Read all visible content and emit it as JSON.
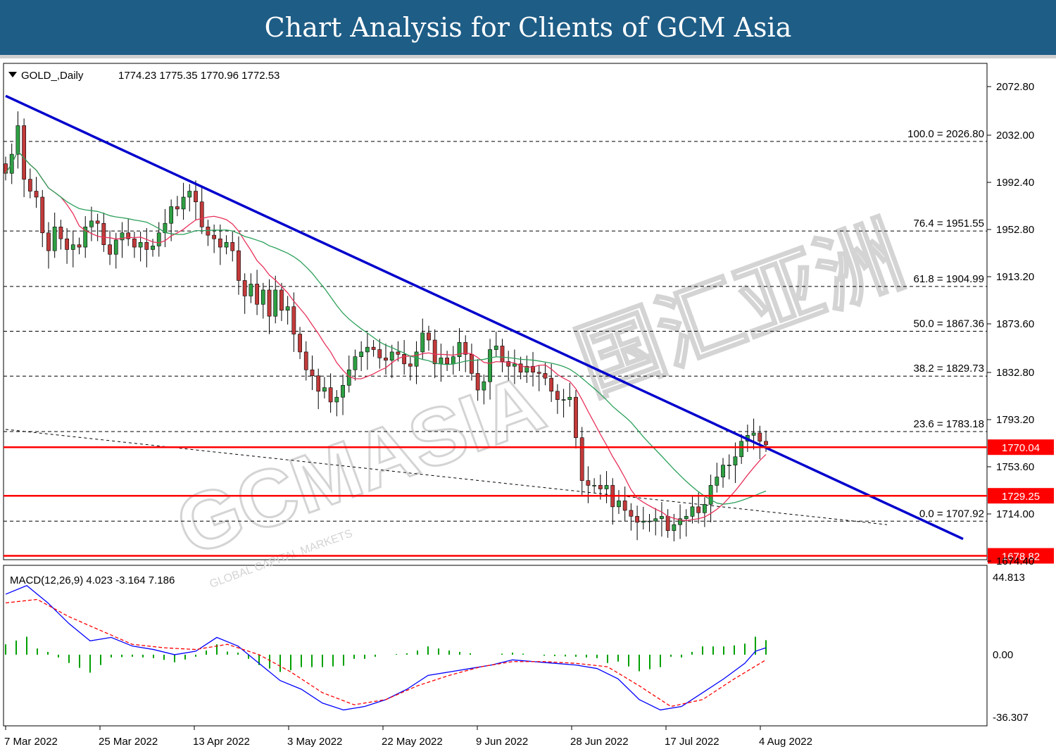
{
  "header": {
    "title": "Chart Analysis for Clients of GCM Asia"
  },
  "chart_info": {
    "symbol": "GOLD_,Daily",
    "ohlc": "1774.23 1775.35 1770.96 1772.53"
  },
  "chart_data": {
    "type": "candlestick",
    "instrument": "GOLD_",
    "timeframe": "Daily",
    "price_axis_ticks": [
      "2072.80",
      "2032.00",
      "1992.40",
      "1952.80",
      "1913.20",
      "1873.60",
      "1832.80",
      "1793.20",
      "1753.60",
      "1714.00",
      "1674.40"
    ],
    "date_ticks": [
      "7 Mar 2022",
      "25 Mar 2022",
      "13 Apr 2022",
      "3 May 2022",
      "22 May 2022",
      "9 Jun 2022",
      "28 Jun 2022",
      "17 Jul 2022",
      "4 Aug 2022"
    ],
    "fibonacci_levels": [
      {
        "label": "100.0 = 2026.80",
        "price": 2026.8
      },
      {
        "label": "76.4 = 1951.55",
        "price": 1951.55
      },
      {
        "label": "61.8 = 1904.99",
        "price": 1904.99
      },
      {
        "label": "50.0 = 1867.36",
        "price": 1867.36
      },
      {
        "label": "38.2 = 1829.73",
        "price": 1829.73
      },
      {
        "label": "23.6 = 1783.18",
        "price": 1783.18
      },
      {
        "label": "0.0 = 1707.92",
        "price": 1707.92
      }
    ],
    "horizontal_levels": [
      {
        "label": "1770.04",
        "price": 1770.04,
        "color": "#ff0000"
      },
      {
        "label": "1729.25",
        "price": 1729.25,
        "color": "#ff0000"
      },
      {
        "label": "1678.82",
        "price": 1678.82,
        "color": "#ff0000"
      }
    ],
    "trendline": {
      "color": "#0000cc",
      "start": {
        "date": "7 Mar 2022",
        "price": 2065
      },
      "end": {
        "date": "4 Aug 2022",
        "price": 1693
      }
    },
    "moving_averages": [
      {
        "color": "#e8315a",
        "type": "fast"
      },
      {
        "color": "#2ca05a",
        "type": "slow"
      }
    ],
    "closes": [
      2000,
      2016,
      2040,
      1995,
      1985,
      1980,
      1950,
      1935,
      1955,
      1945,
      1936,
      1940,
      1938,
      1955,
      1960,
      1958,
      1940,
      1932,
      1944,
      1950,
      1945,
      1938,
      1942,
      1936,
      1939,
      1950,
      1958,
      1972,
      1970,
      1980,
      1985,
      1976,
      1955,
      1948,
      1945,
      1938,
      1942,
      1935,
      1910,
      1897,
      1907,
      1890,
      1902,
      1880,
      1902,
      1885,
      1888,
      1865,
      1850,
      1835,
      1830,
      1817,
      1820,
      1808,
      1812,
      1822,
      1835,
      1846,
      1850,
      1854,
      1852,
      1845,
      1843,
      1850,
      1848,
      1840,
      1838,
      1850,
      1866,
      1860,
      1840,
      1845,
      1840,
      1846,
      1858,
      1848,
      1832,
      1818,
      1825,
      1852,
      1855,
      1842,
      1838,
      1840,
      1833,
      1838,
      1833,
      1832,
      1828,
      1817,
      1810,
      1810,
      1812,
      1778,
      1742,
      1738,
      1738,
      1735,
      1738,
      1720,
      1725,
      1717,
      1712,
      1707,
      1708,
      1708,
      1710,
      1712,
      1700,
      1705,
      1710,
      1712,
      1720,
      1715,
      1722,
      1738,
      1745,
      1755,
      1755,
      1762,
      1775,
      1780,
      1782,
      1775,
      1772
    ],
    "macd": {
      "label": "MACD(12,26,9) 4.023 -3.164 7.186",
      "ticks": [
        "44.813",
        "0.00",
        "-36.307"
      ],
      "main_color": "#0000ff",
      "signal_color": "#ff0000",
      "histogram_color": "#00a000",
      "main_points": [
        [
          0,
          35
        ],
        [
          2,
          40
        ],
        [
          4,
          30
        ],
        [
          6,
          18
        ],
        [
          8,
          8
        ],
        [
          10,
          10
        ],
        [
          12,
          5
        ],
        [
          14,
          3
        ],
        [
          16,
          0
        ],
        [
          18,
          2
        ],
        [
          20,
          10
        ],
        [
          22,
          5
        ],
        [
          24,
          -5
        ],
        [
          26,
          -15
        ],
        [
          28,
          -20
        ],
        [
          30,
          -28
        ],
        [
          32,
          -32
        ],
        [
          34,
          -30
        ],
        [
          36,
          -26
        ],
        [
          38,
          -20
        ],
        [
          40,
          -12
        ],
        [
          42,
          -10
        ],
        [
          44,
          -8
        ],
        [
          46,
          -6
        ],
        [
          48,
          -3
        ],
        [
          50,
          -4
        ],
        [
          52,
          -5
        ],
        [
          54,
          -6
        ],
        [
          56,
          -8
        ],
        [
          58,
          -14
        ],
        [
          60,
          -26
        ],
        [
          62,
          -32
        ],
        [
          64,
          -30
        ],
        [
          66,
          -22
        ],
        [
          68,
          -14
        ],
        [
          70,
          -5
        ],
        [
          71,
          2
        ],
        [
          72,
          4
        ]
      ],
      "signal_points": [
        [
          0,
          30
        ],
        [
          3,
          32
        ],
        [
          6,
          22
        ],
        [
          9,
          14
        ],
        [
          12,
          6
        ],
        [
          15,
          4
        ],
        [
          18,
          3
        ],
        [
          21,
          6
        ],
        [
          24,
          0
        ],
        [
          27,
          -10
        ],
        [
          30,
          -22
        ],
        [
          33,
          -29
        ],
        [
          36,
          -26
        ],
        [
          39,
          -18
        ],
        [
          42,
          -12
        ],
        [
          45,
          -7
        ],
        [
          48,
          -4
        ],
        [
          51,
          -4
        ],
        [
          54,
          -5
        ],
        [
          57,
          -7
        ],
        [
          60,
          -18
        ],
        [
          63,
          -30
        ],
        [
          66,
          -26
        ],
        [
          69,
          -14
        ],
        [
          72,
          -3
        ]
      ]
    }
  },
  "watermark": {
    "brand": "GCMASIA",
    "tagline": "GLOBAL CAPITAL MARKETS",
    "chinese": "国汇亚洲"
  }
}
